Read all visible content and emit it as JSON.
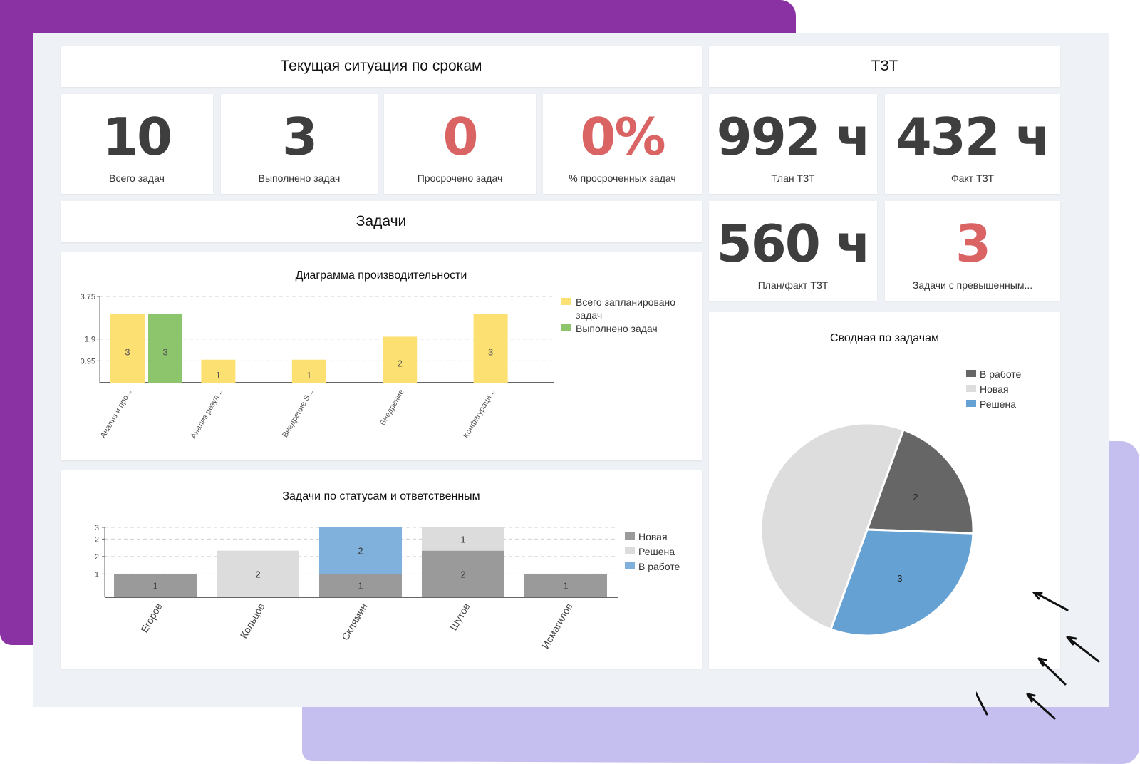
{
  "header_left": "Текущая ситуация по срокам",
  "header_right": "ТЗТ",
  "section_tasks": "Задачи",
  "kpis": [
    {
      "value": "10",
      "label": "Всего задач"
    },
    {
      "value": "3",
      "label": "Выполнено задач"
    },
    {
      "value": "0",
      "label": "Просрочено задач"
    },
    {
      "value": "0%",
      "label": "% просроченных задач"
    },
    {
      "value": "992 ч",
      "label": "Tлан ТЗТ"
    },
    {
      "value": "432 ч",
      "label": "Факт ТЗТ"
    },
    {
      "value": "560 ч",
      "label": "План/факт ТЗТ"
    },
    {
      "value": "3",
      "label": "Задачи с превышенным..."
    }
  ],
  "colors": {
    "kpi_default": "#3e3e3e",
    "kpi_alert": "#da6464",
    "purple_backdrop": "#8a32a4",
    "lilac_backdrop": "#c5bff0",
    "yellow": "#fde072",
    "green": "#8cc56c",
    "gray_dark": "#9a9a9a",
    "gray_light": "#dcdcdc",
    "blue": "#7fb1dc",
    "pie_dark": "#666666",
    "pie_light": "#dddddd",
    "pie_blue": "#65a1d2"
  },
  "chart_data": [
    {
      "type": "bar",
      "title": "Диаграмма производительности",
      "categories": [
        "Анализ и про...",
        "Анализ резул...",
        "Внедрение S...",
        "Внедрение",
        "Конфигураци..."
      ],
      "series": [
        {
          "name": "Всего запланировано задач",
          "values": [
            3,
            1,
            1,
            2,
            3
          ]
        },
        {
          "name": "Выполнено задач",
          "values": [
            3,
            null,
            null,
            null,
            null
          ]
        }
      ],
      "yticks": [
        "0.95",
        "1.9",
        "3.75"
      ],
      "ylim": [
        0,
        3.75
      ],
      "legend": "right",
      "grid": true
    },
    {
      "type": "bar",
      "stacked": true,
      "title": "Задачи по статусам и ответственным",
      "categories": [
        "Егоров",
        "Кольцов",
        "Склямин",
        "Шутов",
        "Исмагилов"
      ],
      "series": [
        {
          "name": "Новая",
          "values": [
            1,
            null,
            1,
            2,
            1
          ]
        },
        {
          "name": "Решена",
          "values": [
            null,
            2,
            null,
            1,
            null
          ]
        },
        {
          "name": "В работе",
          "values": [
            null,
            null,
            2,
            null,
            null
          ]
        }
      ],
      "yticks": [
        "1",
        "2",
        "2",
        "3"
      ],
      "ylim": [
        0,
        3
      ],
      "legend": "right",
      "grid": true
    },
    {
      "type": "pie",
      "title": "Сводная по задачам",
      "legend": [
        "В работе",
        "Новая",
        "Решена"
      ],
      "slices": [
        {
          "name": "В работе",
          "value": 2,
          "label": "2"
        },
        {
          "name": "Решена",
          "value": 3,
          "label": "3"
        },
        {
          "name": "Новая",
          "value": 5,
          "label": ""
        }
      ]
    }
  ]
}
